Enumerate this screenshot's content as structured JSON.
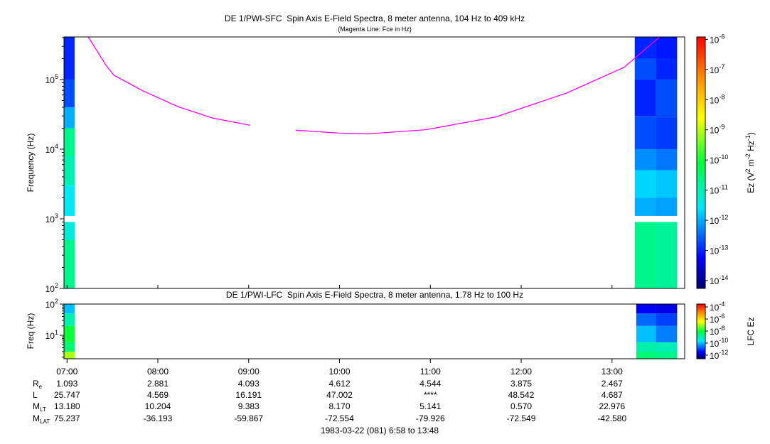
{
  "chart_data": [
    {
      "type": "spectrogram",
      "title": "DE 1/PWI-SFC  Spin Axis E-Field Spectra, 8 meter antenna, 104 Hz to 409 kHz",
      "subtitle": "(Magenta Line: Fce in Hz)",
      "ylabel": "Frequency (Hz)",
      "ylog": true,
      "ylim": [
        100,
        409000
      ],
      "yticks": [
        {
          "value": 100,
          "label": "10",
          "exp": "2"
        },
        {
          "value": 1000,
          "label": "10",
          "exp": "3"
        },
        {
          "value": 10000,
          "label": "10",
          "exp": "4"
        },
        {
          "value": 100000,
          "label": "10",
          "exp": "5"
        }
      ],
      "spectra": [
        {
          "t": [
            418,
            425
          ],
          "f": [
            100,
            500,
            900,
            1100,
            3000,
            8000,
            20000,
            40000,
            100000,
            409000
          ],
          "values": [
            2e-11,
            5e-12,
            null,
            3e-12,
            1e-11,
            2e-11,
            1e-12,
            2e-13,
            1e-13
          ]
        },
        {
          "t": [
            795,
            809
          ],
          "f": [
            100,
            900,
            1100,
            2000,
            5000,
            10000,
            30000,
            100000,
            200000,
            409000
          ],
          "values": [
            2e-11,
            null,
            1e-12,
            2e-12,
            6e-13,
            2e-13,
            1e-13,
            2e-13,
            1e-13
          ]
        },
        {
          "t": [
            809,
            823
          ],
          "f": [
            100,
            900,
            1100,
            2000,
            5000,
            10000,
            30000,
            100000,
            200000,
            409000
          ],
          "values": [
            1.5e-11,
            null,
            8e-13,
            1.5e-12,
            4e-13,
            1.5e-13,
            2e-13,
            1e-13,
            8e-14
          ]
        }
      ],
      "series": [
        {
          "color": "#ff00ff",
          "x": [
            434,
            446,
            451,
            470,
            493,
            516,
            541,
            null,
            571,
            600,
            619,
            657,
            703,
            750,
            788,
            811
          ],
          "values": [
            409000,
            157000,
            115000,
            69000,
            41000,
            28000,
            22000,
            null,
            18700,
            17000,
            16600,
            19000,
            29000,
            64000,
            150000,
            400000
          ]
        }
      ],
      "colorbar": {
        "log": true,
        "lim": [
          5.5e-15,
          1.2e-06
        ],
        "ticks": [
          {
            "value": 1e-06,
            "label": "10",
            "exp": "-6"
          },
          {
            "value": 1e-07,
            "label": "10",
            "exp": "-7"
          },
          {
            "value": 1e-08,
            "label": "10",
            "exp": "-8"
          },
          {
            "value": 1e-09,
            "label": "10",
            "exp": "-9"
          },
          {
            "value": 1e-10,
            "label": "10",
            "exp": "-10"
          },
          {
            "value": 1e-11,
            "label": "10",
            "exp": "-11"
          },
          {
            "value": 1e-12,
            "label": "10",
            "exp": "-12"
          },
          {
            "value": 1e-13,
            "label": "10",
            "exp": "-13"
          },
          {
            "value": 1e-14,
            "label": "10",
            "exp": "-14"
          }
        ],
        "label": [
          "Ez (V",
          "2",
          " m",
          "-2",
          " Hz",
          "-1",
          ")"
        ]
      }
    },
    {
      "type": "spectrogram",
      "title": "DE 1/PWI-LFC  Spin Axis E-Field Spectra, 8 meter antenna, 1.78 Hz to 100 Hz",
      "ylabel": "Freq (Hz)",
      "ylog": true,
      "ylim": [
        1.78,
        100
      ],
      "yticks": [
        {
          "value": 10,
          "label": "10",
          "exp": "1"
        },
        {
          "value": 100,
          "label": "10",
          "exp": "2"
        }
      ],
      "xlim": [
        418,
        828
      ],
      "xticks": [
        {
          "value": 420,
          "label": "07:00"
        },
        {
          "value": 480,
          "label": "08:00"
        },
        {
          "value": 540,
          "label": "09:00"
        },
        {
          "value": 600,
          "label": "10:00"
        },
        {
          "value": 660,
          "label": "11:00"
        },
        {
          "value": 720,
          "label": "12:00"
        },
        {
          "value": 780,
          "label": "13:00"
        }
      ],
      "spectra": [
        {
          "t": [
            418,
            425
          ],
          "f": [
            1.78,
            3,
            6,
            20,
            50,
            100
          ],
          "values": [
            1e-07,
            3e-09,
            1e-08,
            1e-09,
            1e-10
          ]
        },
        {
          "t": [
            796,
            809
          ],
          "f": [
            1.78,
            3,
            6,
            20,
            50,
            100
          ],
          "values": [
            3e-09,
            1e-09,
            1e-10,
            2e-11,
            3e-12
          ]
        },
        {
          "t": [
            809,
            823
          ],
          "f": [
            1.78,
            3,
            6,
            20,
            50,
            100
          ],
          "values": [
            2e-09,
            8e-10,
            3e-11,
            1e-11,
            2e-12
          ]
        }
      ],
      "colorbar": {
        "log": true,
        "lim": [
          2.5e-13,
          0.0003
        ],
        "ticks": [
          {
            "value": 0.0001,
            "label": "10",
            "exp": "-4"
          },
          {
            "value": 1e-06,
            "label": "10",
            "exp": "-6"
          },
          {
            "value": 1e-08,
            "label": "10",
            "exp": "-8"
          },
          {
            "value": 1e-10,
            "label": "10",
            "exp": "-10"
          },
          {
            "value": 1e-12,
            "label": "10",
            "exp": "-12"
          }
        ],
        "label": [
          "LFC Ez"
        ]
      }
    }
  ],
  "ephemeris": {
    "rows": [
      {
        "label": "R",
        "sub": "e",
        "values": [
          "1.093",
          "2.881",
          "4.093",
          "4.612",
          "4.544",
          "3.875",
          "2.467"
        ]
      },
      {
        "label": "L",
        "values": [
          "25.747",
          "4.569",
          "16.191",
          "47.002",
          "****",
          "48.542",
          "4.687"
        ]
      },
      {
        "label": "M",
        "sub": "LT",
        "values": [
          "13.180",
          "10.204",
          "9.383",
          "8.170",
          "5.141",
          "0.570",
          "22.976"
        ]
      },
      {
        "label": "M",
        "sub": "LAT",
        "values": [
          "75.237",
          "-36.193",
          "-59.867",
          "-72.554",
          "-79.926",
          "-72.549",
          "-42.580"
        ]
      }
    ],
    "footer": "1983-03-22 (081) 6:58 to 13:48"
  }
}
